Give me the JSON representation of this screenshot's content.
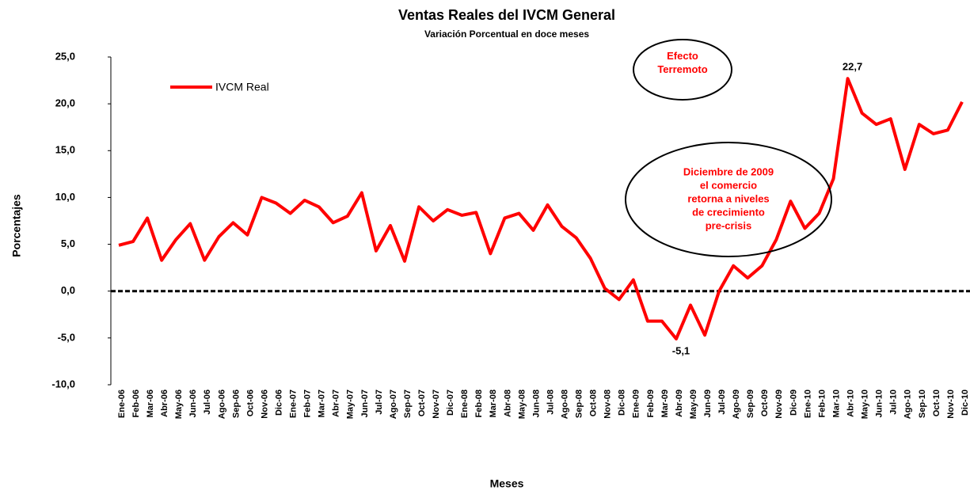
{
  "chart_data": {
    "type": "line",
    "title": "Ventas Reales del IVCM General",
    "subtitle": "Variación Porcentual en doce meses",
    "y_label": "Porcentajes",
    "x_label": "Meses",
    "categories": [
      "Ene-06",
      "Feb-06",
      "Mar-06",
      "Abr-06",
      "May-06",
      "Jun-06",
      "Jul-06",
      "Ago-06",
      "Sep-06",
      "Oct-06",
      "Nov-06",
      "Dic-06",
      "Ene-07",
      "Feb-07",
      "Mar-07",
      "Abr-07",
      "May-07",
      "Jun-07",
      "Jul-07",
      "Ago-07",
      "Sep-07",
      "Oct-07",
      "Nov-07",
      "Dic-07",
      "Ene-08",
      "Feb-08",
      "Mar-08",
      "Abr-08",
      "May-08",
      "Jun-08",
      "Jul-08",
      "Ago-08",
      "Sep-08",
      "Oct-08",
      "Nov-08",
      "Dic-08",
      "Ene-09",
      "Feb-09",
      "Mar-09",
      "Abr-09",
      "May-09",
      "Jun-09",
      "Jul-09",
      "Ago-09",
      "Sep-09",
      "Oct-09",
      "Nov-09",
      "Dic-09",
      "Ene-10",
      "Feb-10",
      "Mar-10",
      "Abr-10",
      "May-10",
      "Jun-10",
      "Jul-10",
      "Ago-10",
      "Sep-10",
      "Oct-10",
      "Nov-10",
      "Dic-10"
    ],
    "series": [
      {
        "name": "IVCM Real",
        "color": "#ff0000",
        "values": [
          4.9,
          5.3,
          7.8,
          3.3,
          5.5,
          7.2,
          3.3,
          5.8,
          7.3,
          6.0,
          10.0,
          9.4,
          8.3,
          9.7,
          9.0,
          7.3,
          8.0,
          10.5,
          4.3,
          7.0,
          3.2,
          9.0,
          7.5,
          8.7,
          8.1,
          8.4,
          4.0,
          7.8,
          8.3,
          6.5,
          9.2,
          6.9,
          5.7,
          3.5,
          0.3,
          -0.9,
          1.2,
          -3.2,
          -3.2,
          -5.1,
          -1.5,
          -4.7,
          0.0,
          2.7,
          1.4,
          2.7,
          5.5,
          9.6,
          6.7,
          8.3,
          12.0,
          22.7,
          19.0,
          17.8,
          18.4,
          13.0,
          17.8,
          16.8,
          17.2,
          20.2
        ],
        "value_labels": [
          null,
          null,
          null,
          null,
          null,
          null,
          null,
          null,
          null,
          null,
          null,
          null,
          null,
          null,
          null,
          null,
          null,
          null,
          null,
          null,
          null,
          null,
          null,
          null,
          null,
          null,
          null,
          null,
          null,
          null,
          null,
          null,
          null,
          null,
          null,
          null,
          null,
          null,
          null,
          "-5,1",
          null,
          null,
          null,
          null,
          null,
          null,
          null,
          null,
          null,
          null,
          null,
          "22,7",
          null,
          null,
          null,
          null,
          null,
          null,
          null,
          null
        ]
      }
    ],
    "ylim": [
      -10,
      25
    ],
    "yticks": [
      {
        "value": 25,
        "label": "25,0"
      },
      {
        "value": 20,
        "label": "20,0"
      },
      {
        "value": 15,
        "label": "15,0"
      },
      {
        "value": 10,
        "label": "10,0"
      },
      {
        "value": 5,
        "label": "5,0"
      },
      {
        "value": 0,
        "label": "0,0"
      },
      {
        "value": -5,
        "label": "-5,0"
      },
      {
        "value": -10,
        "label": "-10,0"
      }
    ],
    "grid": false,
    "legend": "upper left",
    "annotations": [
      {
        "lines": [
          "Efecto",
          "Terremoto"
        ]
      },
      {
        "lines": [
          "Diciembre de 2009",
          "el comercio",
          "retorna a niveles",
          "de crecimiento",
          "pre-crisis"
        ]
      }
    ]
  }
}
